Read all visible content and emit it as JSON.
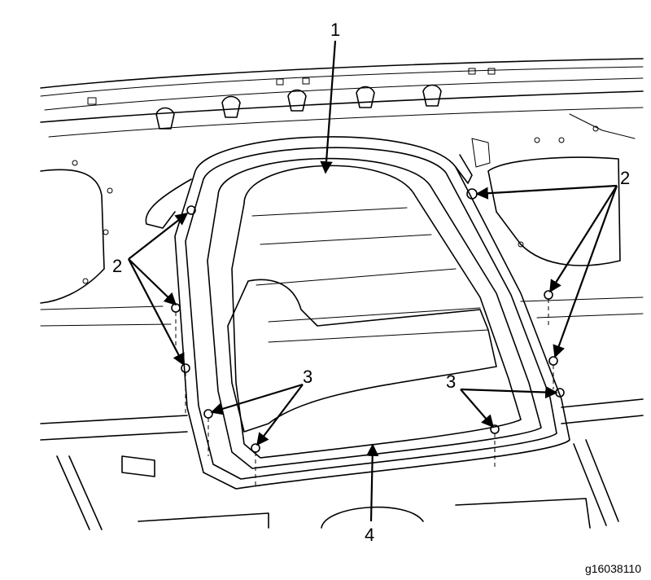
{
  "figure_id": "g16038110",
  "callouts": {
    "c1": "1",
    "c2_left": "2",
    "c2_right": "2",
    "c3_left": "3",
    "c3_right": "3",
    "c4": "4"
  }
}
